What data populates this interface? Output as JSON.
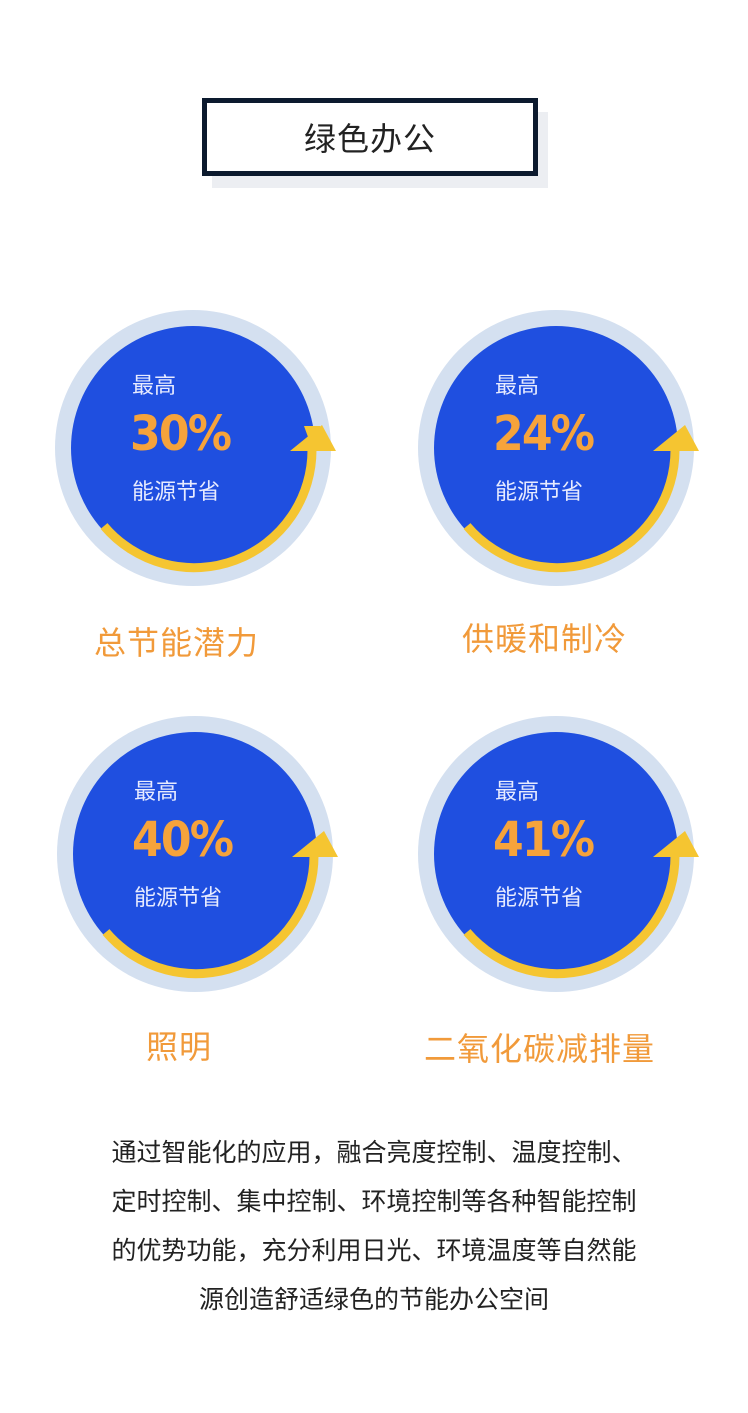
{
  "title": "绿色办公",
  "stats": [
    {
      "label_top": "最高",
      "percent": "30%",
      "label_bottom": "能源节省",
      "caption": "总节能潜力"
    },
    {
      "label_top": "最高",
      "percent": "24%",
      "label_bottom": "能源节省",
      "caption": "供暖和制冷"
    },
    {
      "label_top": "最高",
      "percent": "40%",
      "label_bottom": "能源节省",
      "caption": "照明"
    },
    {
      "label_top": "最高",
      "percent": "41%",
      "label_bottom": "能源节省",
      "caption": "二氧化碳减排量"
    }
  ],
  "description_lines": [
    "通过智能化的应用，融合亮度控制、温度控制、",
    "定时控制、集中控制、环境控制等各种智能控制",
    "的优势功能，充分利用日光、环境温度等自然能",
    "源创造舒适绿色的节能办公空间"
  ],
  "colors": {
    "circle_fill": "#1f4fe0",
    "ring": "#d4e0f0",
    "arc": "#f5c531",
    "percent": "#f6a33b",
    "caption": "#f19a3a"
  }
}
